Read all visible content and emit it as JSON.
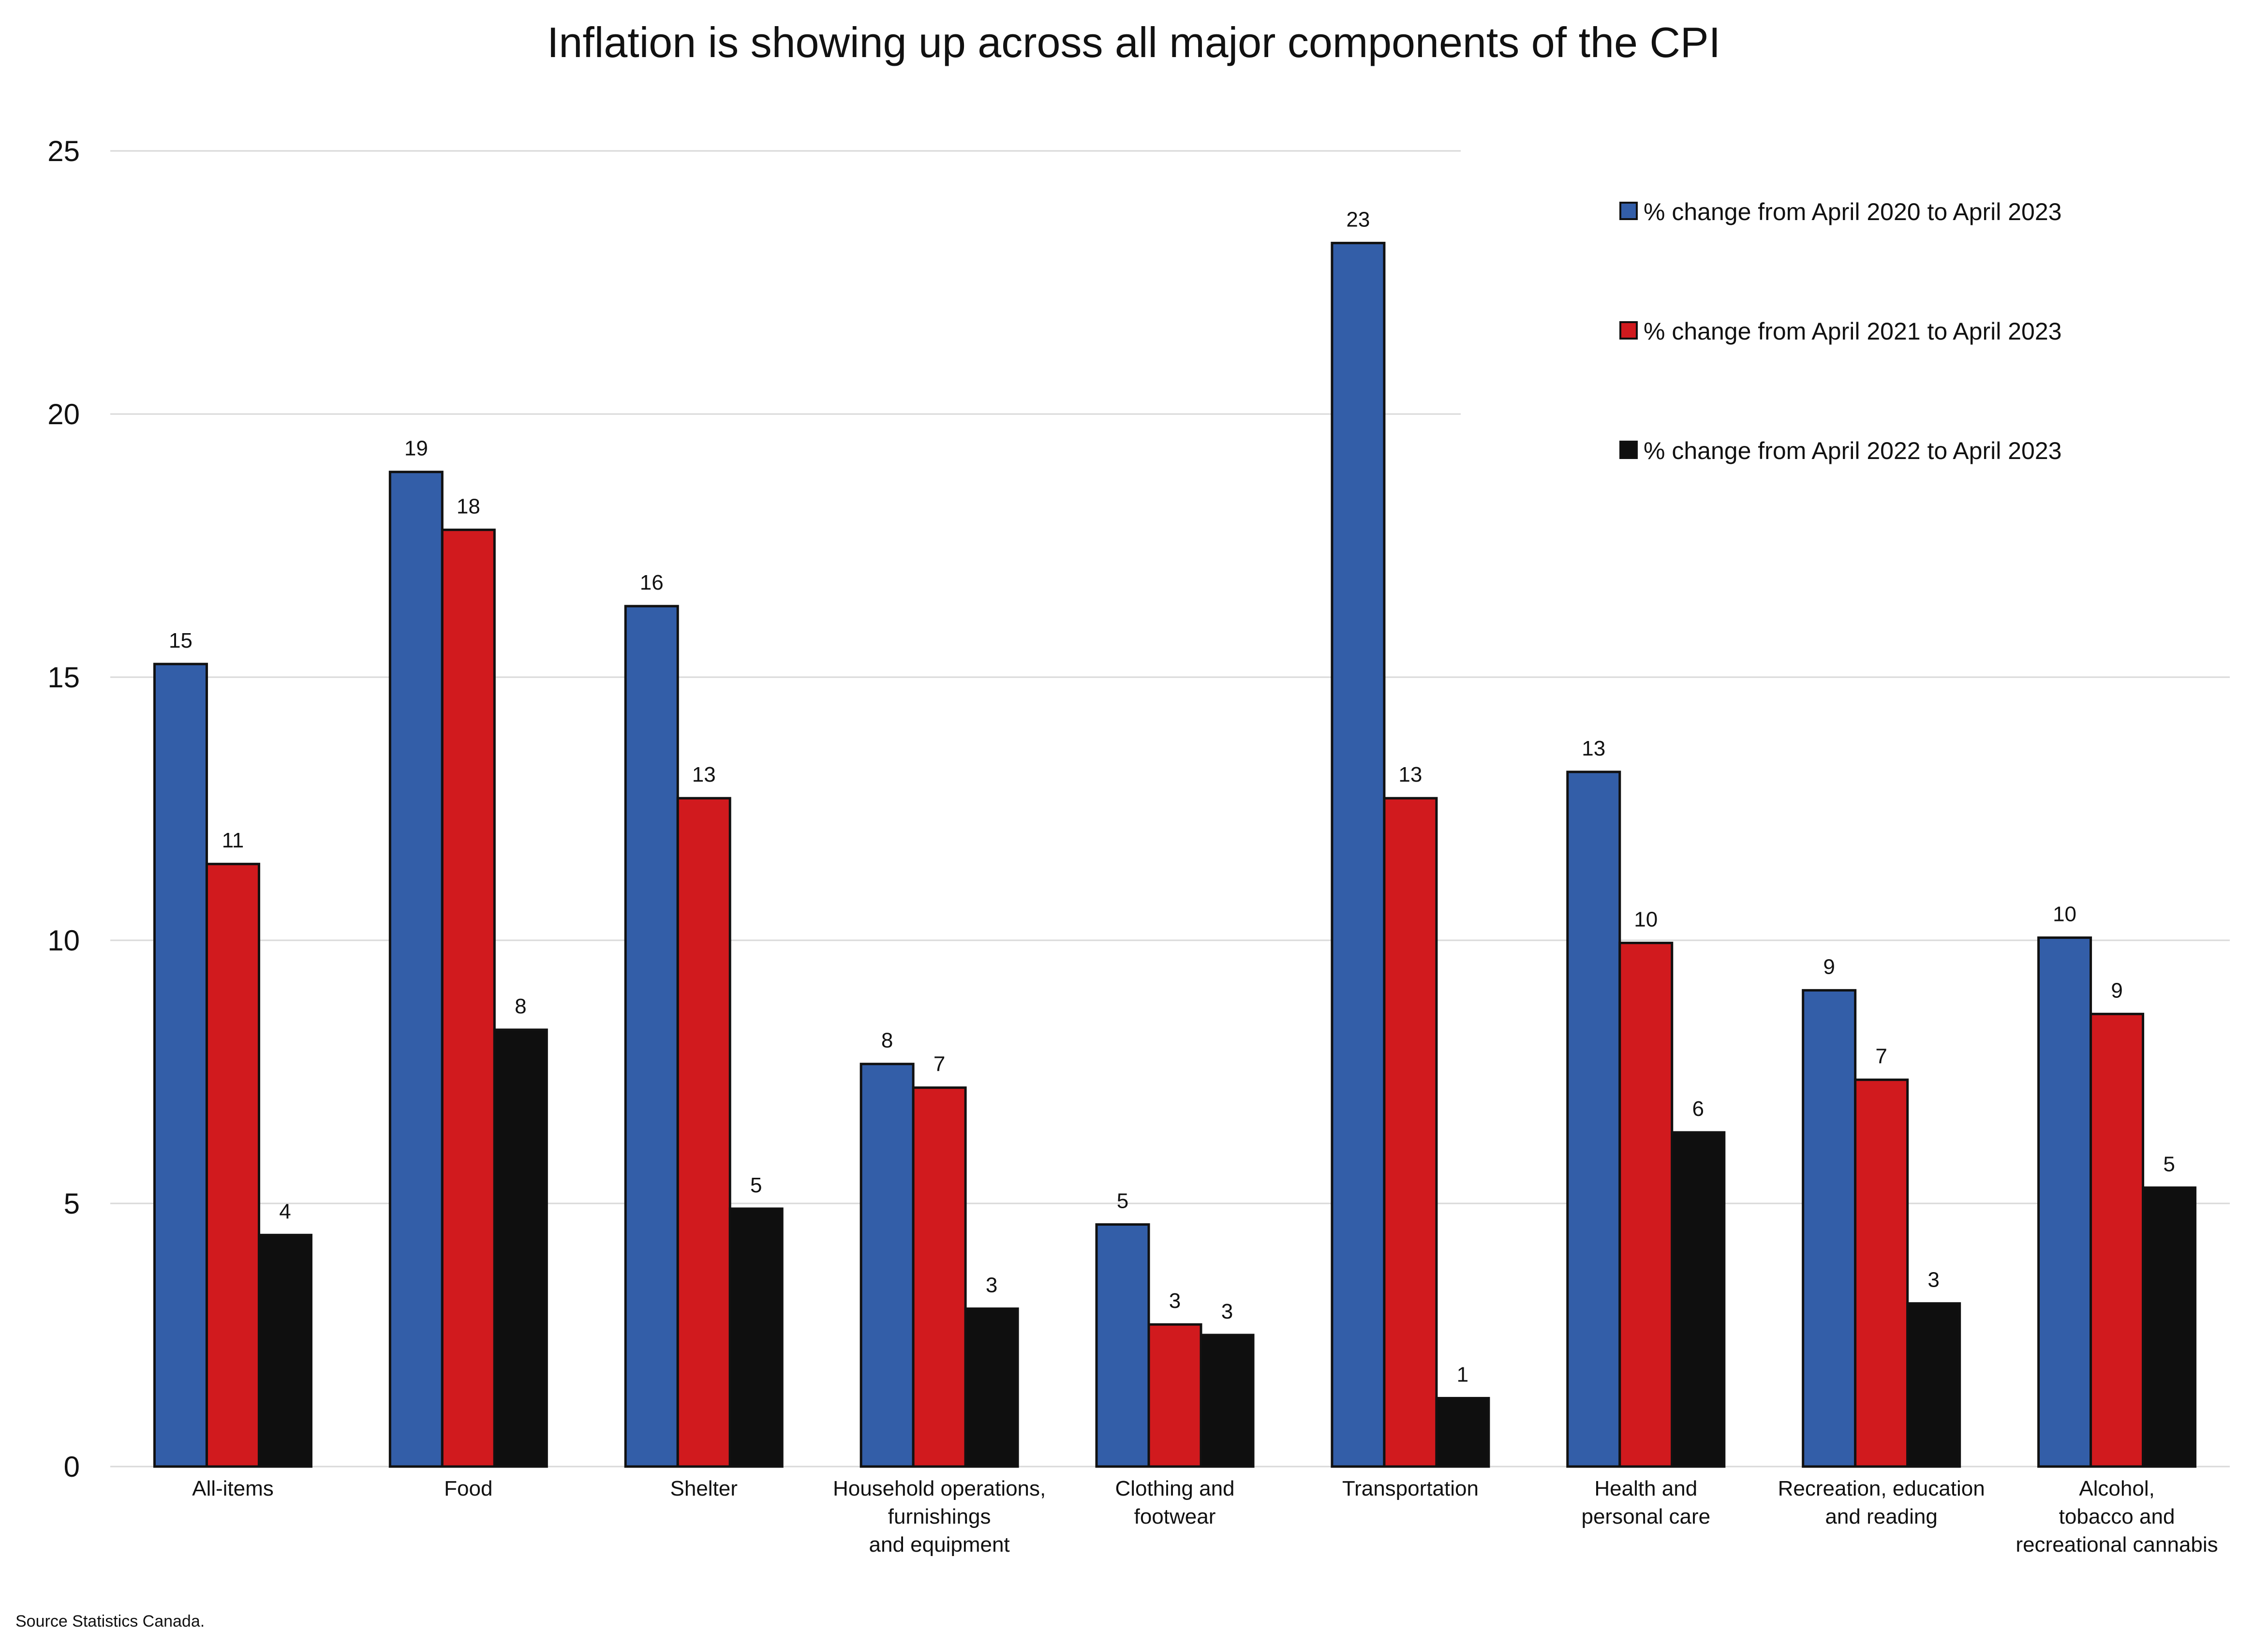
{
  "chart_data": {
    "type": "bar",
    "title": "Inflation is showing up across all major components of the CPI",
    "xlabel": "",
    "ylabel": "",
    "ylim": [
      0,
      25
    ],
    "yticks": [
      "0",
      "5",
      "10",
      "15",
      "20",
      "25"
    ],
    "grid": true,
    "legend_position": "top-right",
    "categories": [
      [
        "All-items"
      ],
      [
        "Food"
      ],
      [
        "Shelter"
      ],
      [
        "Household operations,",
        "furnishings",
        "and equipment"
      ],
      [
        "Clothing and",
        "footwear"
      ],
      [
        "Transportation"
      ],
      [
        "Health and",
        "personal care"
      ],
      [
        "Recreation, education",
        "and reading"
      ],
      [
        "Alcohol,",
        "tobacco and",
        "recreational cannabis"
      ]
    ],
    "series": [
      {
        "name": "% change from April 2020 to April 2023",
        "color": "#335ea8",
        "values": [
          15.25,
          18.9,
          16.35,
          7.65,
          4.6,
          23.25,
          13.2,
          9.05,
          10.05
        ],
        "labels": [
          "15",
          "19",
          "16",
          "8",
          "5",
          "23",
          "13",
          "9",
          "10"
        ]
      },
      {
        "name": "% change from April 2021 to April 2023",
        "color": "#d11a1e",
        "values": [
          11.45,
          17.8,
          12.7,
          7.2,
          2.7,
          12.7,
          9.95,
          7.35,
          8.6
        ],
        "labels": [
          "11",
          "18",
          "13",
          "7",
          "3",
          "13",
          "10",
          "7",
          "9"
        ]
      },
      {
        "name": "% change from April 2022 to April 2023",
        "color": "#0f0f0f",
        "values": [
          4.4,
          8.3,
          4.9,
          3.0,
          2.5,
          1.3,
          6.35,
          3.1,
          5.3
        ],
        "labels": [
          "4",
          "8",
          "5",
          "3",
          "3",
          "1",
          "6",
          "3",
          "5"
        ]
      }
    ],
    "source": "Source Statistics Canada."
  }
}
